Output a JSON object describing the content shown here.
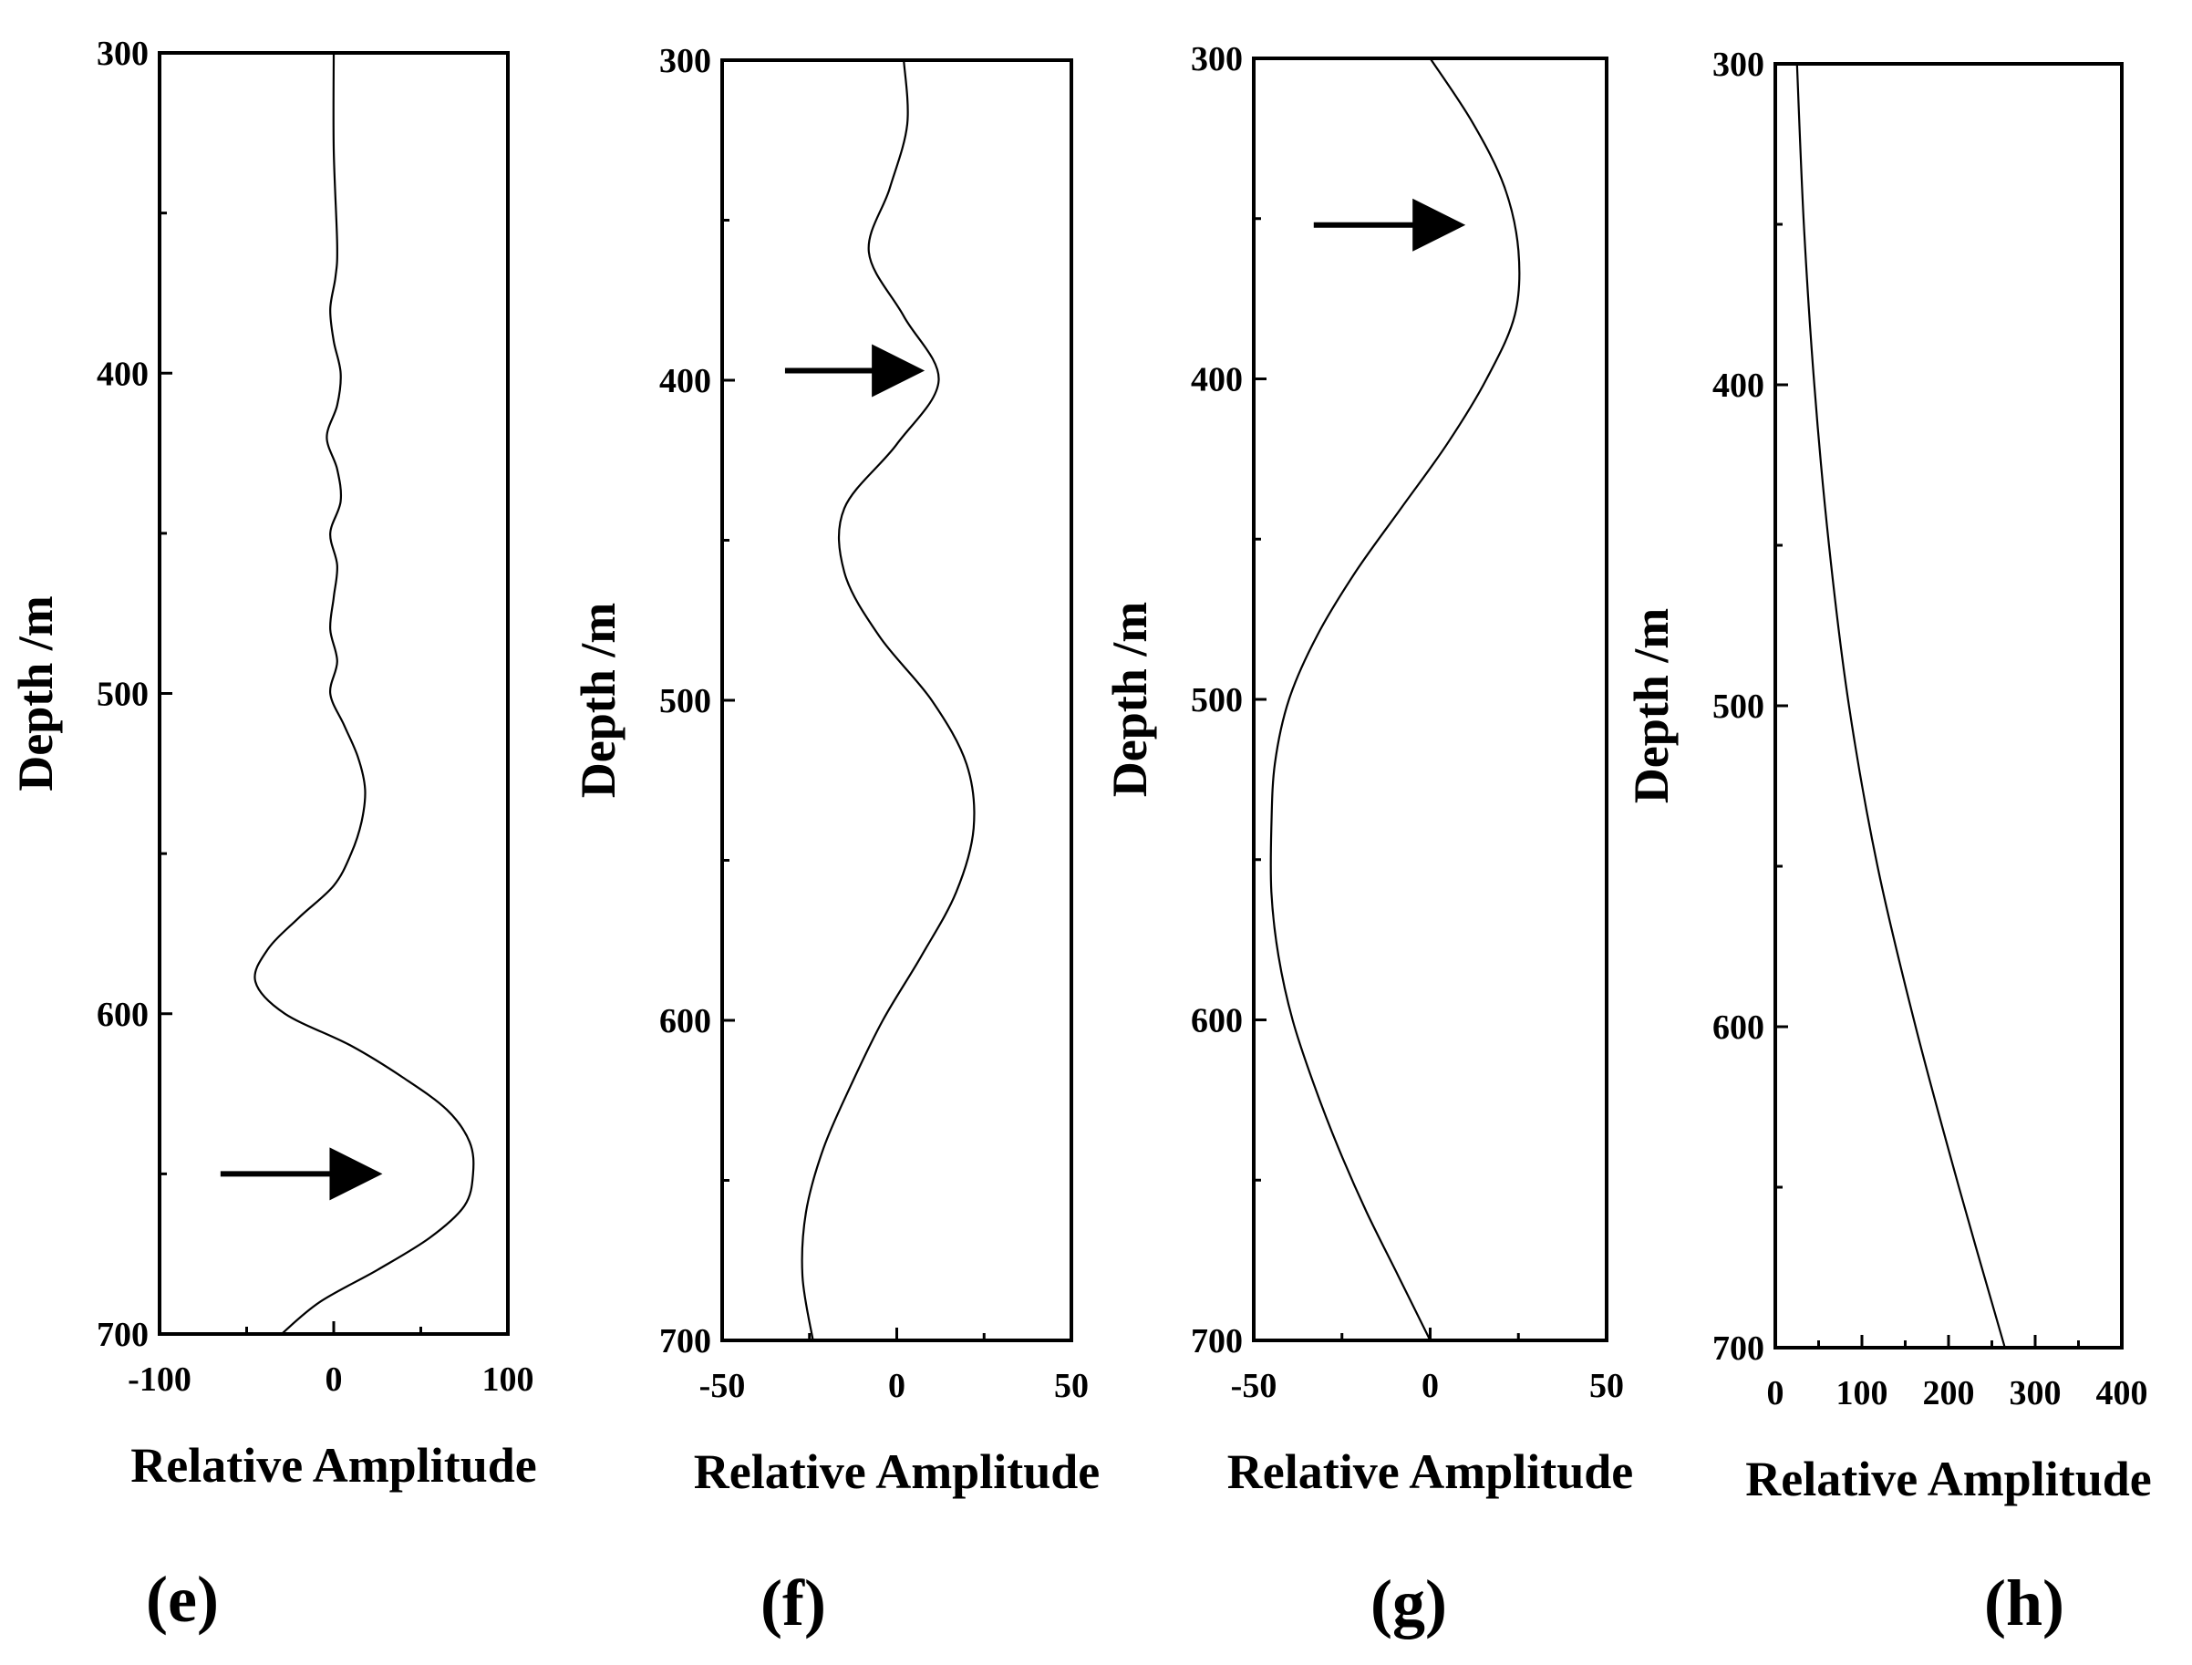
{
  "chart_data": [
    {
      "type": "line",
      "panel_label": "(e)",
      "xlabel": "Relative Amplitude",
      "ylabel": "Depth /m",
      "xlim": [
        -100,
        100
      ],
      "ylim": [
        300,
        700
      ],
      "y_inverted": true,
      "xticks": [
        -100,
        0,
        100
      ],
      "xtick_labels": [
        "-100",
        "0",
        "100"
      ],
      "yticks": [
        300,
        400,
        500,
        600,
        700
      ],
      "ytick_labels": [
        "300",
        "400",
        "500",
        "600",
        "700"
      ],
      "xminor": [
        -50,
        50
      ],
      "yminor": [
        350,
        450,
        550,
        650
      ],
      "series": [
        {
          "name": "e",
          "depth": [
            300,
            330,
            360,
            370,
            380,
            390,
            400,
            410,
            420,
            430,
            440,
            450,
            460,
            470,
            480,
            490,
            500,
            510,
            520,
            530,
            540,
            550,
            560,
            570,
            580,
            590,
            600,
            610,
            620,
            630,
            640,
            650,
            660,
            670,
            680,
            690,
            700
          ],
          "amplitude": [
            0,
            0,
            2,
            1,
            -2,
            0,
            4,
            2,
            -4,
            2,
            4,
            -2,
            2,
            0,
            -2,
            2,
            -2,
            6,
            14,
            18,
            16,
            10,
            0,
            -20,
            -38,
            -45,
            -28,
            10,
            40,
            65,
            78,
            80,
            75,
            55,
            25,
            -8,
            -30
          ]
        }
      ],
      "arrows": [
        {
          "depth": 650,
          "x_start": -65,
          "x_end": 28
        }
      ]
    },
    {
      "type": "line",
      "panel_label": "(f)",
      "xlabel": "Relative Amplitude",
      "ylabel": "Depth /m",
      "xlim": [
        -50,
        50
      ],
      "ylim": [
        300,
        700
      ],
      "y_inverted": true,
      "xticks": [
        -50,
        0,
        50
      ],
      "xtick_labels": [
        "-50",
        "0",
        "50"
      ],
      "yticks": [
        300,
        400,
        500,
        600,
        700
      ],
      "ytick_labels": [
        "300",
        "400",
        "500",
        "600",
        "700"
      ],
      "xminor": [
        -25,
        25
      ],
      "yminor": [
        350,
        450,
        550,
        650
      ],
      "series": [
        {
          "name": "f",
          "depth": [
            300,
            320,
            340,
            360,
            380,
            400,
            420,
            440,
            460,
            480,
            500,
            520,
            540,
            560,
            580,
            600,
            620,
            640,
            660,
            680,
            700
          ],
          "amplitude": [
            2,
            3,
            -2,
            -8,
            2,
            12,
            0,
            -15,
            -15,
            -5,
            10,
            20,
            22,
            17,
            7,
            -4,
            -13,
            -21,
            -26,
            -27,
            -24
          ]
        }
      ],
      "arrows": [
        {
          "depth": 397,
          "x_start": -32,
          "x_end": 8
        }
      ]
    },
    {
      "type": "line",
      "panel_label": "(g)",
      "xlabel": "Relative Amplitude",
      "ylabel": "Depth /m",
      "xlim": [
        -50,
        50
      ],
      "ylim": [
        300,
        700
      ],
      "y_inverted": true,
      "xticks": [
        -50,
        0,
        50
      ],
      "xtick_labels": [
        "-50",
        "0",
        "50"
      ],
      "yticks": [
        300,
        400,
        500,
        600,
        700
      ],
      "ytick_labels": [
        "300",
        "400",
        "500",
        "600",
        "700"
      ],
      "xminor": [
        -25,
        25
      ],
      "yminor": [
        350,
        450,
        550,
        650
      ],
      "series": [
        {
          "name": "g",
          "depth": [
            300,
            320,
            340,
            360,
            380,
            400,
            420,
            440,
            460,
            480,
            500,
            520,
            540,
            560,
            580,
            600,
            620,
            640,
            660,
            680,
            700
          ],
          "amplitude": [
            0,
            12,
            21,
            25,
            24,
            16,
            5,
            -8,
            -21,
            -32,
            -40,
            -44,
            -45,
            -45,
            -43,
            -39,
            -33,
            -26,
            -18,
            -9,
            0
          ]
        }
      ],
      "arrows": [
        {
          "depth": 352,
          "x_start": -33,
          "x_end": 10
        }
      ]
    },
    {
      "type": "line",
      "panel_label": "(h)",
      "xlabel": "Relative Amplitude",
      "ylabel": "Depth /m",
      "xlim": [
        0,
        400
      ],
      "ylim": [
        300,
        700
      ],
      "y_inverted": true,
      "xticks": [
        0,
        100,
        200,
        300,
        400
      ],
      "xtick_labels": [
        "0",
        "100",
        "200",
        "300",
        "400"
      ],
      "yticks": [
        300,
        400,
        500,
        600,
        700
      ],
      "ytick_labels": [
        "300",
        "400",
        "500",
        "600",
        "700"
      ],
      "xminor": [
        50,
        150,
        250,
        350
      ],
      "yminor": [
        350,
        450,
        550,
        650
      ],
      "series": [
        {
          "name": "h",
          "depth": [
            300,
            350,
            400,
            450,
            500,
            550,
            600,
            650,
            700
          ],
          "amplitude": [
            25,
            33,
            45,
            62,
            85,
            118,
            162,
            212,
            265
          ]
        }
      ],
      "arrows": []
    }
  ]
}
